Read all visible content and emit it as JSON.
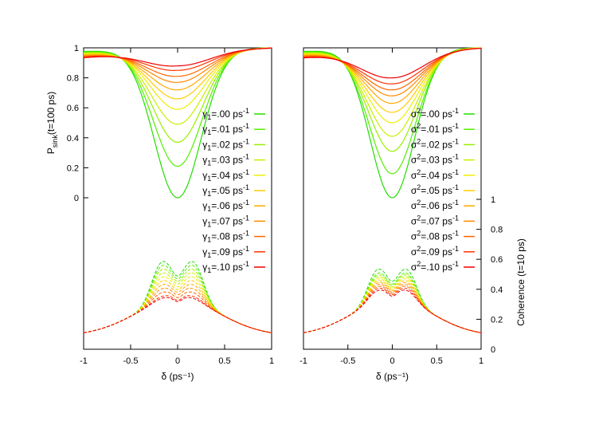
{
  "chart_data": [
    {
      "type": "line",
      "xlabel": "δ (ps⁻¹)",
      "ylabel_left": "P_sink(t=100 ps)",
      "ylabel_right": "",
      "xlim": [
        -1,
        1
      ],
      "ylim_left": [
        0,
        1
      ],
      "xticks": [
        "-1",
        "-0.5",
        "0",
        "0.5",
        "1"
      ],
      "yticks_left": [
        "0",
        "0.2",
        "0.4",
        "0.6",
        "0.8",
        "1"
      ],
      "yticks_right": [],
      "grid": false,
      "legend_position": "right-center",
      "series_style": "solid lines = P_sink, dashed lines = Coherence",
      "legend_symbol": "γ",
      "legend_subscript": "1",
      "legend_unit": "ps",
      "legend_exp": "-1",
      "series": [
        {
          "name": ".00",
          "color": "#22dd00",
          "psink_min": 0.0,
          "coh_peak": 0.54
        },
        {
          "name": ".01",
          "color": "#55ee00",
          "psink_min": 0.21,
          "coh_peak": 0.52
        },
        {
          "name": ".02",
          "color": "#99ee00",
          "psink_min": 0.37,
          "coh_peak": 0.5
        },
        {
          "name": ".03",
          "color": "#ccee00",
          "psink_min": 0.49,
          "coh_peak": 0.48
        },
        {
          "name": ".04",
          "color": "#eeee00",
          "psink_min": 0.59,
          "coh_peak": 0.46
        },
        {
          "name": ".05",
          "color": "#ffcc00",
          "psink_min": 0.66,
          "coh_peak": 0.44
        },
        {
          "name": ".06",
          "color": "#ffaa00",
          "psink_min": 0.72,
          "coh_peak": 0.42
        },
        {
          "name": ".07",
          "color": "#ff8800",
          "psink_min": 0.77,
          "coh_peak": 0.4
        },
        {
          "name": ".08",
          "color": "#ff6600",
          "psink_min": 0.81,
          "coh_peak": 0.38
        },
        {
          "name": ".09",
          "color": "#ff3300",
          "psink_min": 0.85,
          "coh_peak": 0.36
        },
        {
          "name": ".10",
          "color": "#ee0000",
          "psink_min": 0.88,
          "coh_peak": 0.35
        }
      ]
    },
    {
      "type": "line",
      "xlabel": "δ (ps⁻¹)",
      "ylabel_left": "",
      "ylabel_right": "Coherence (t=10 ps)",
      "xlim": [
        -1,
        1
      ],
      "ylim_right": [
        0,
        1
      ],
      "xticks": [
        "-1",
        "-0.5",
        "0",
        "0.5",
        "1"
      ],
      "yticks_left": [],
      "yticks_right": [
        "0",
        "0.2",
        "0.4",
        "0.6",
        "0.8",
        "1"
      ],
      "grid": false,
      "legend_position": "right-center",
      "series_style": "solid lines = P_sink, dashed lines = Coherence",
      "legend_symbol": "σ",
      "legend_subscript": "",
      "legend_sup": "2",
      "legend_unit": "ps",
      "legend_exp": "-1",
      "series": [
        {
          "name": ".00",
          "color": "#22dd00",
          "psink_min": 0.0,
          "coh_peak": 0.5
        },
        {
          "name": ".01",
          "color": "#55ee00",
          "psink_min": 0.16,
          "coh_peak": 0.48
        },
        {
          "name": ".02",
          "color": "#99ee00",
          "psink_min": 0.31,
          "coh_peak": 0.47
        },
        {
          "name": ".03",
          "color": "#ccee00",
          "psink_min": 0.41,
          "coh_peak": 0.46
        },
        {
          "name": ".04",
          "color": "#eeee00",
          "psink_min": 0.5,
          "coh_peak": 0.45
        },
        {
          "name": ".05",
          "color": "#ffcc00",
          "psink_min": 0.57,
          "coh_peak": 0.44
        },
        {
          "name": ".06",
          "color": "#ffaa00",
          "psink_min": 0.63,
          "coh_peak": 0.43
        },
        {
          "name": ".07",
          "color": "#ff8800",
          "psink_min": 0.68,
          "coh_peak": 0.42
        },
        {
          "name": ".08",
          "color": "#ff6600",
          "psink_min": 0.72,
          "coh_peak": 0.41
        },
        {
          "name": ".09",
          "color": "#ff3300",
          "psink_min": 0.76,
          "coh_peak": 0.4
        },
        {
          "name": ".10",
          "color": "#ee0000",
          "psink_min": 0.8,
          "coh_peak": 0.39
        }
      ]
    }
  ]
}
